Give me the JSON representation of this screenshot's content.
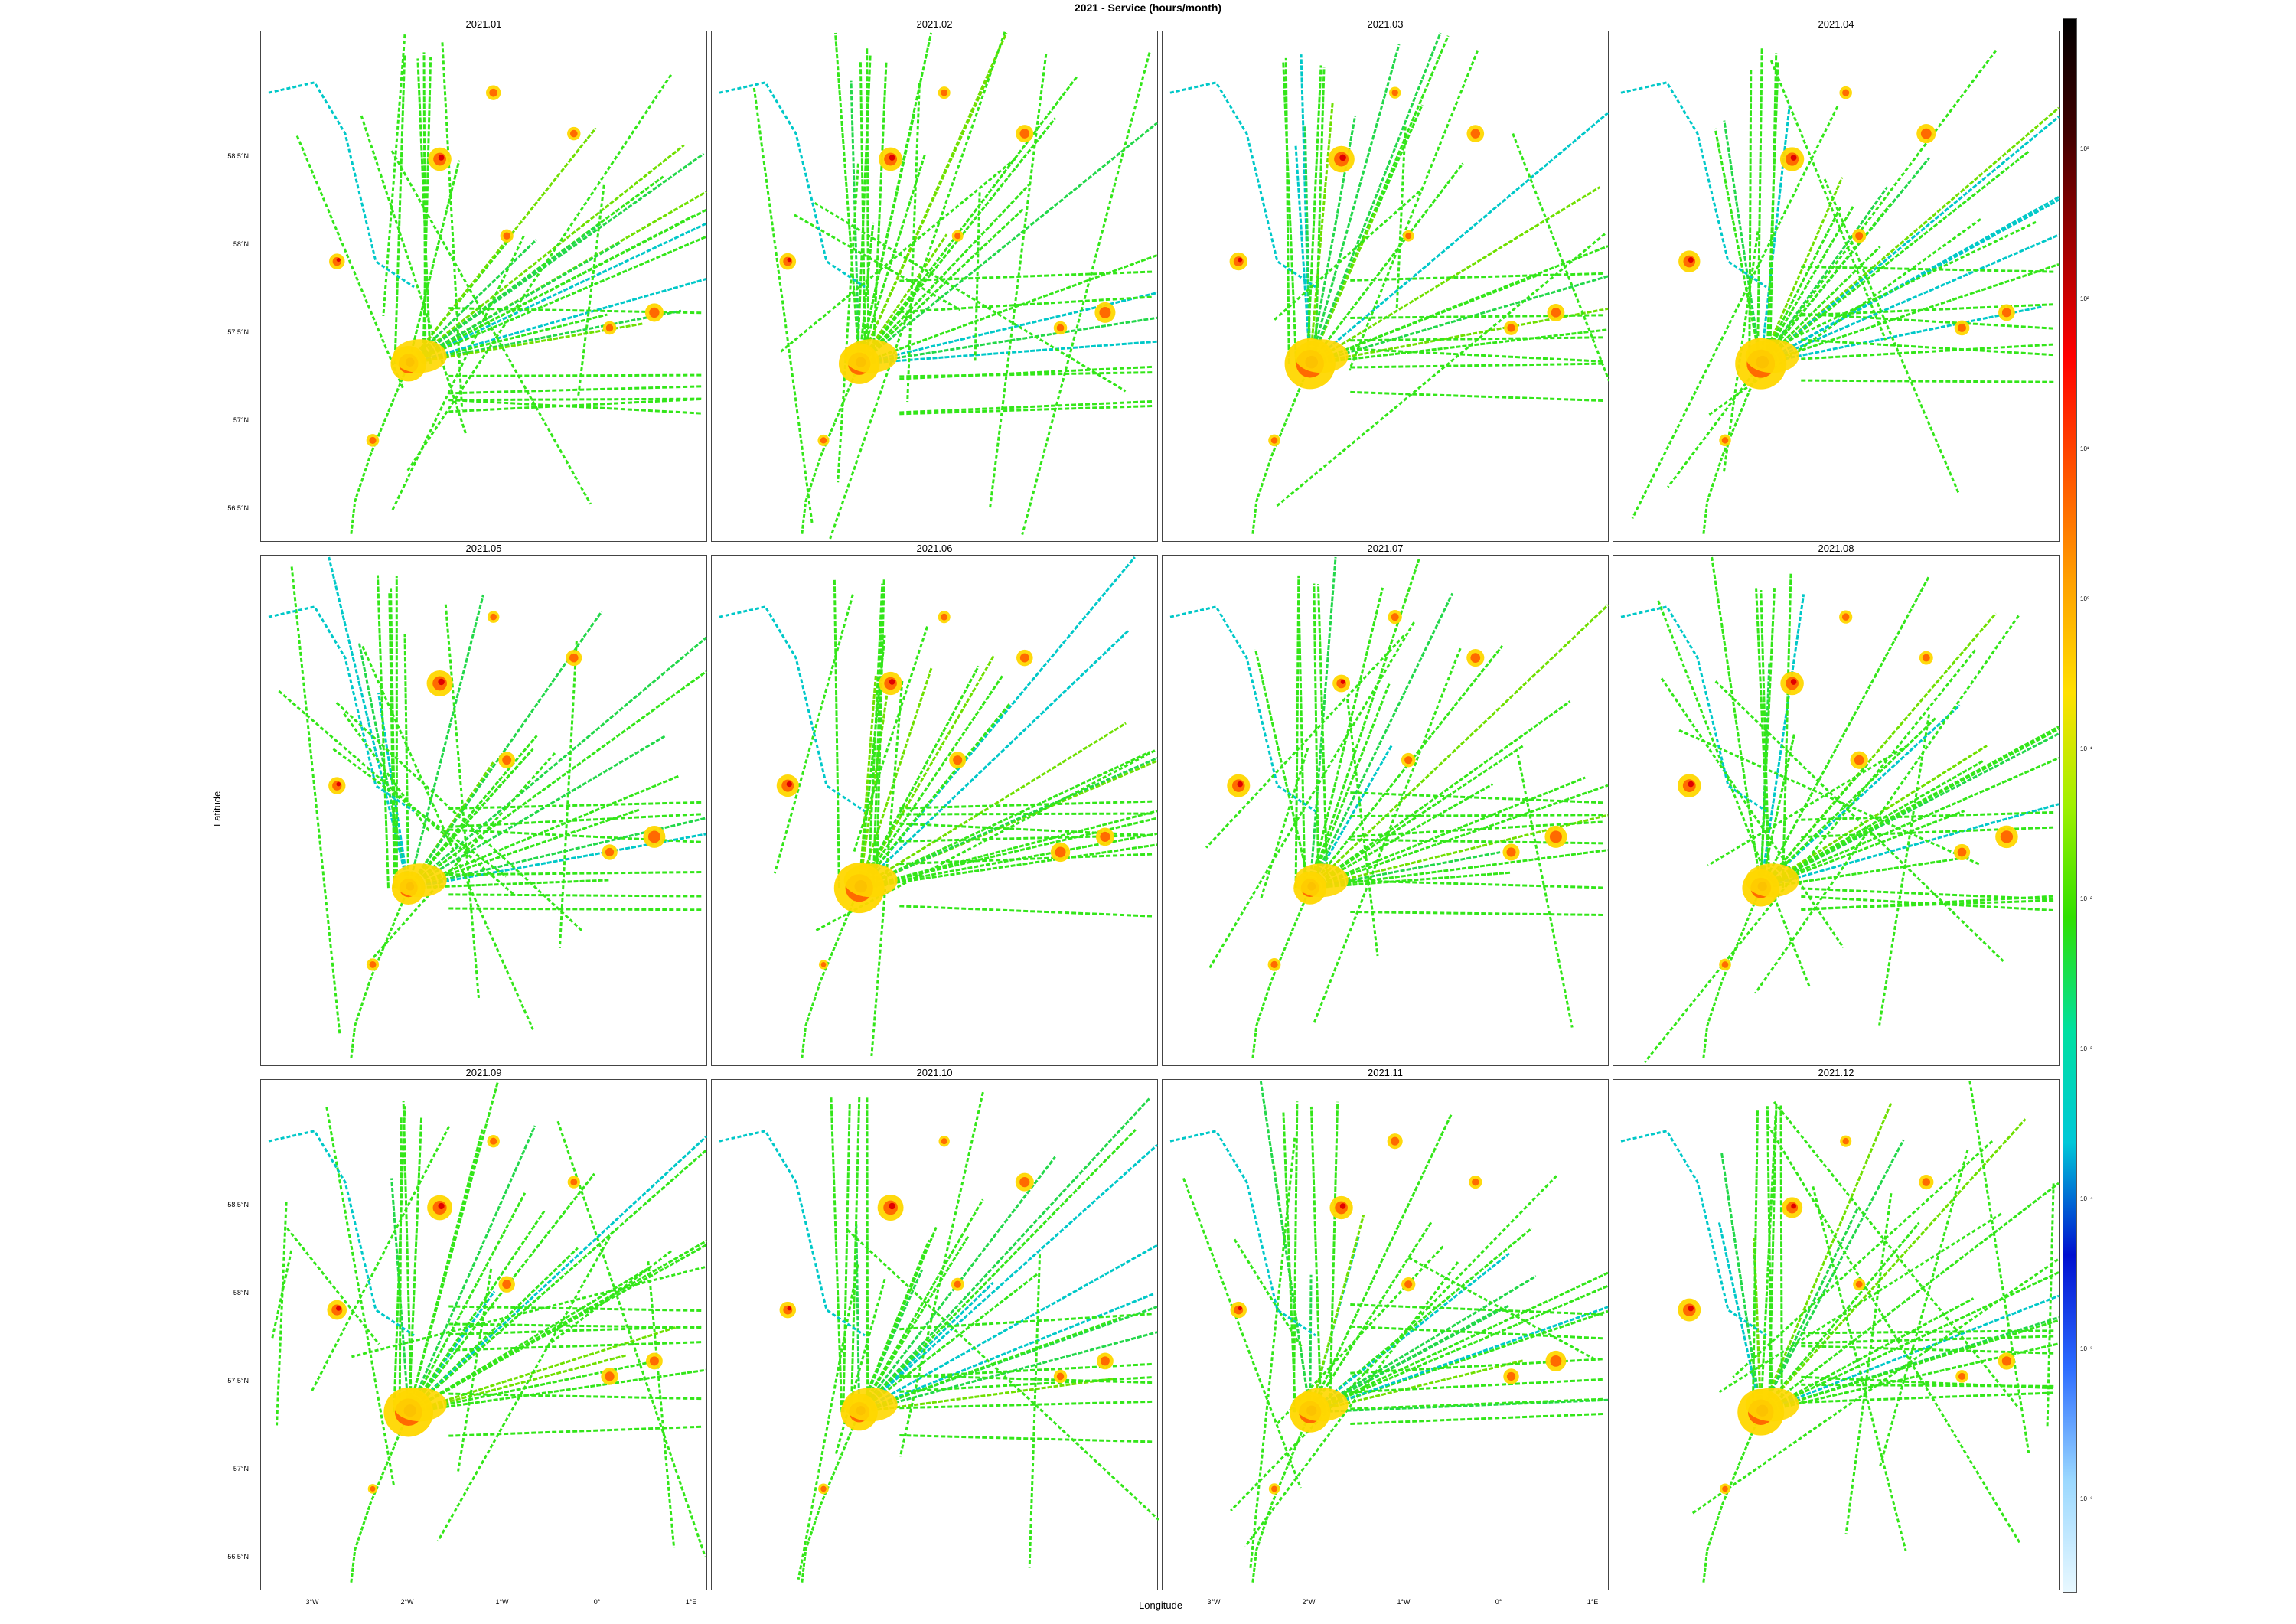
{
  "title": "2021 - Service (hours/month)",
  "xlabel": "Longitude",
  "ylabel": "Latitude",
  "panels": [
    "2021.01",
    "2021.02",
    "2021.03",
    "2021.04",
    "2021.05",
    "2021.06",
    "2021.07",
    "2021.08",
    "2021.09",
    "2021.10",
    "2021.11",
    "2021.12"
  ],
  "lat_ticks": [
    "58.5°N",
    "58°N",
    "57.5°N",
    "57°N",
    "56.5°N"
  ],
  "lon_ticks": [
    "3°W",
    "2°W",
    "1°W",
    "0°",
    "1°E"
  ],
  "colorbar": {
    "labels": [
      "10³",
      "10²",
      "10¹",
      "10⁰",
      "10⁻¹",
      "10⁻²",
      "10⁻³",
      "10⁻⁴",
      "10⁻⁵",
      "10⁻⁶"
    ],
    "colors": [
      "#e8f8ff",
      "#9ad8ff",
      "#2c6cff",
      "#0010d0",
      "#00c8d8",
      "#00e0a0",
      "#30e000",
      "#a0f000",
      "#ffe000",
      "#ffa000",
      "#ff5000",
      "#ff0000",
      "#a00000",
      "#400000",
      "#000000"
    ]
  },
  "map_colors": {
    "track": "#33e619",
    "track_alt": "#22d84a",
    "port": "#ffd700",
    "hot": "#ff6a00",
    "hotcore": "#e00000",
    "cold": "#00c8c8",
    "deep": "#0040ff"
  }
}
